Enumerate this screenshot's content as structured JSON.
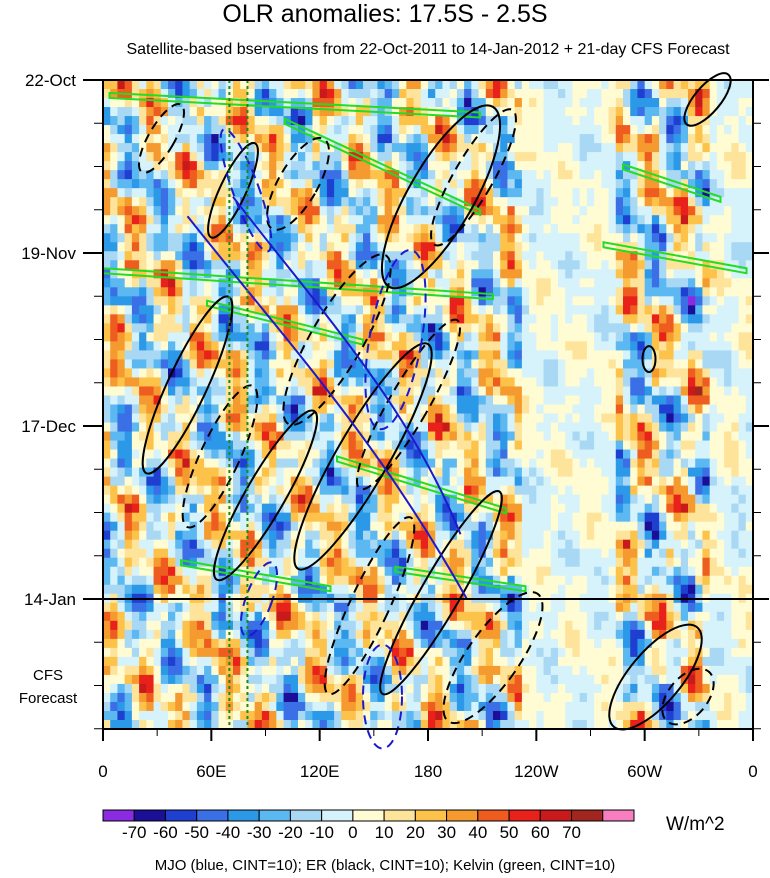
{
  "chart_data": {
    "type": "heatmap",
    "title": "OLR anomalies: 17.5S - 2.5S",
    "subtitle": "Satellite-based bservations from 22-Oct-2011 to 14-Jan-2012 + 21-day CFS Forecast",
    "x_tick_labels": [
      "0",
      "60E",
      "120E",
      "180",
      "120W",
      "60W",
      "0"
    ],
    "y_tick_labels": [
      "22-Oct",
      "19-Nov",
      "17-Dec",
      "14-Jan"
    ],
    "forecast_label": "CFS\nForecast",
    "colorbar": {
      "units": "W/m^2",
      "tick_labels": [
        "-70",
        "-60",
        "-50",
        "-40",
        "-30",
        "-20",
        "-10",
        "0",
        "10",
        "20",
        "30",
        "40",
        "50",
        "60",
        "70"
      ],
      "colors": [
        "#8a2be2",
        "#1a0f96",
        "#1f3fd0",
        "#3b6fe6",
        "#2c99e8",
        "#5cb8f0",
        "#a9d8f5",
        "#d6f2fa",
        "#fffbd2",
        "#fde49a",
        "#fcc24a",
        "#f59a2f",
        "#ee5c1f",
        "#e8221a",
        "#c81a1a",
        "#a0261f",
        "#f77fc0"
      ]
    },
    "overlay_legend": "MJO (blue, CINT=10); ER (black, CINT=10); Kelvin (green, CINT=10)",
    "overlay_colors": {
      "mjo": "#1a1ad0",
      "er": "#000000",
      "kelvin": "#22dd22"
    },
    "forecast_start": "14-Jan"
  }
}
